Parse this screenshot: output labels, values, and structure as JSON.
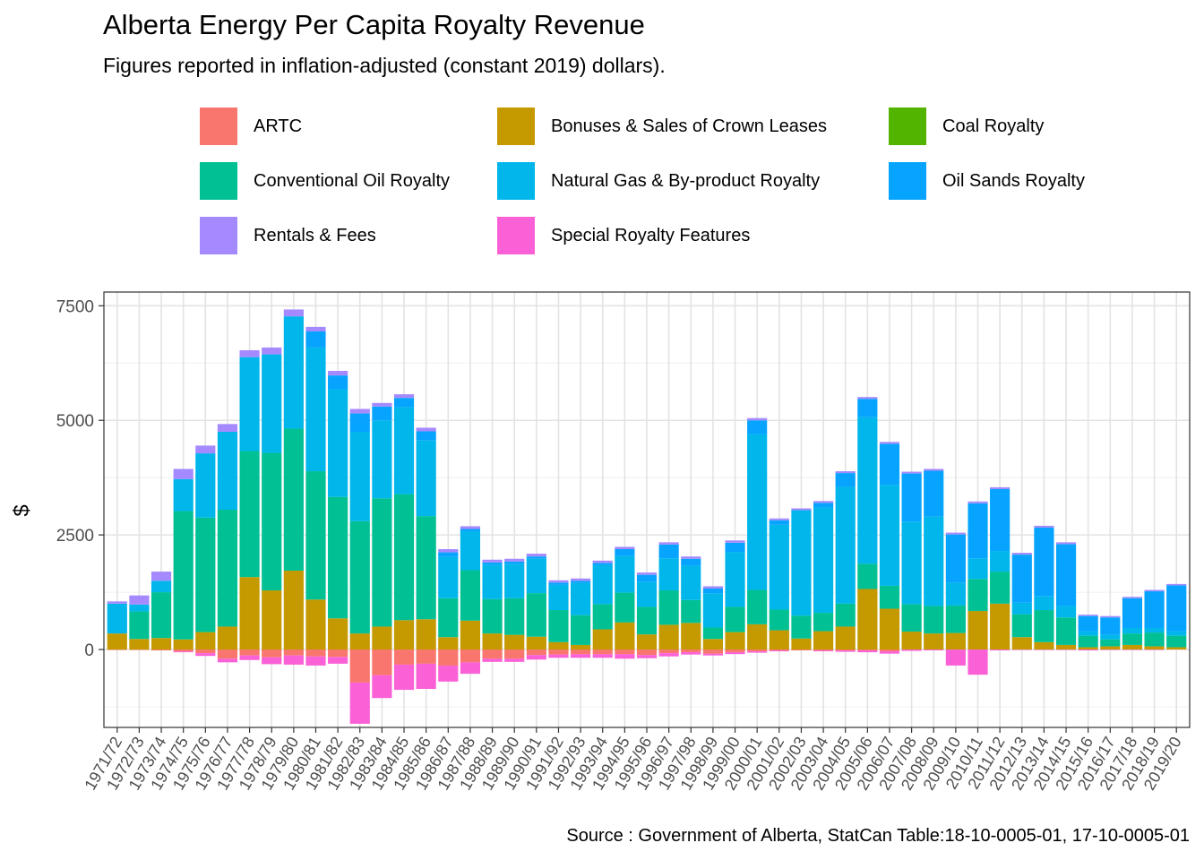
{
  "chart_data": {
    "type": "bar",
    "stacked": true,
    "title": "Alberta Energy Per Capita Royalty Revenue",
    "subtitle": "Figures reported in inflation-adjusted (constant 2019) dollars).",
    "caption": "Source : Government of Alberta, StatCan Table:18-10-0005-01, 17-10-0005-01",
    "xlabel": "",
    "ylabel": "$",
    "ylim": [
      -1700,
      7800
    ],
    "yticks": [
      0,
      2500,
      5000,
      7500
    ],
    "grid": true,
    "legend_position": "top",
    "categories": [
      "1971/72",
      "1972/73",
      "1973/74",
      "1974/75",
      "1975/76",
      "1976/77",
      "1977/78",
      "1978/79",
      "1979/80",
      "1980/81",
      "1981/82",
      "1982/83",
      "1983/84",
      "1984/85",
      "1985/86",
      "1986/87",
      "1987/88",
      "1988/89",
      "1989/90",
      "1990/91",
      "1991/92",
      "1992/93",
      "1993/94",
      "1994/95",
      "1995/96",
      "1996/97",
      "1997/98",
      "1998/99",
      "1999/00",
      "2000/01",
      "2001/02",
      "2002/03",
      "2003/04",
      "2004/05",
      "2005/06",
      "2006/07",
      "2007/08",
      "2008/09",
      "2009/10",
      "2010/11",
      "2011/12",
      "2012/13",
      "2013/14",
      "2014/15",
      "2015/16",
      "2016/17",
      "2017/18",
      "2018/19",
      "2019/20"
    ],
    "series": [
      {
        "name": "ARTC",
        "color": "#F8766D",
        "values": [
          -10,
          -10,
          -20,
          -40,
          -80,
          -200,
          -130,
          -170,
          -130,
          -150,
          -160,
          -720,
          -560,
          -330,
          -310,
          -350,
          -280,
          -200,
          -200,
          -120,
          -110,
          -100,
          -100,
          -100,
          -120,
          -80,
          -60,
          -90,
          -60,
          -40,
          -20,
          -20,
          -20,
          -20,
          -20,
          -40,
          0,
          0,
          0,
          0,
          0,
          0,
          0,
          0,
          0,
          0,
          0,
          0,
          0
        ]
      },
      {
        "name": "Bonuses & Sales of Crown Leases",
        "color": "#C49A00",
        "values": [
          350,
          230,
          250,
          220,
          380,
          500,
          1580,
          1290,
          1720,
          1090,
          680,
          350,
          500,
          640,
          660,
          270,
          630,
          350,
          320,
          280,
          160,
          100,
          440,
          590,
          330,
          540,
          580,
          230,
          380,
          550,
          420,
          240,
          400,
          500,
          1320,
          890,
          390,
          350,
          360,
          840,
          1000,
          270,
          160,
          100,
          50,
          70,
          100,
          70,
          50
        ]
      },
      {
        "name": "Coal Royalty",
        "color": "#53B400",
        "values": [
          0,
          0,
          0,
          0,
          0,
          0,
          0,
          0,
          0,
          0,
          0,
          0,
          0,
          0,
          0,
          0,
          0,
          0,
          0,
          0,
          0,
          0,
          0,
          0,
          0,
          0,
          0,
          0,
          0,
          0,
          0,
          0,
          0,
          0,
          0,
          0,
          0,
          0,
          0,
          0,
          0,
          0,
          0,
          0,
          0,
          0,
          0,
          0,
          0
        ]
      },
      {
        "name": "Conventional Oil Royalty",
        "color": "#00C094",
        "values": [
          0,
          600,
          1000,
          2800,
          2500,
          2550,
          2750,
          3000,
          3100,
          2800,
          2650,
          2450,
          2800,
          2750,
          2250,
          850,
          1100,
          750,
          800,
          950,
          700,
          650,
          550,
          650,
          600,
          750,
          500,
          250,
          550,
          750,
          450,
          500,
          400,
          500,
          550,
          500,
          600,
          600,
          600,
          700,
          700,
          500,
          700,
          600,
          250,
          150,
          250,
          300,
          250
        ]
      },
      {
        "name": "Natural Gas & By-product Royalty",
        "color": "#00B6EB",
        "values": [
          650,
          150,
          250,
          700,
          1400,
          1700,
          2050,
          2150,
          2450,
          2700,
          2350,
          1950,
          1700,
          1900,
          1650,
          900,
          850,
          750,
          750,
          750,
          550,
          700,
          850,
          800,
          550,
          700,
          750,
          750,
          1200,
          3400,
          1850,
          2300,
          2300,
          2550,
          3200,
          2200,
          1800,
          1950,
          500,
          450,
          450,
          250,
          300,
          250,
          100,
          100,
          120,
          100,
          100
        ]
      },
      {
        "name": "Oil Sands Royalty",
        "color": "#06A4FF",
        "values": [
          0,
          0,
          0,
          0,
          0,
          0,
          0,
          0,
          0,
          350,
          300,
          400,
          300,
          200,
          200,
          100,
          50,
          50,
          50,
          50,
          50,
          50,
          50,
          150,
          150,
          300,
          150,
          100,
          200,
          300,
          100,
          0,
          100,
          300,
          400,
          900,
          1050,
          1000,
          1050,
          1200,
          1350,
          1050,
          1500,
          1350,
          330,
          380,
          650,
          800,
          1000
        ]
      },
      {
        "name": "Rentals & Fees",
        "color": "#A58AFF",
        "values": [
          50,
          200,
          200,
          220,
          170,
          170,
          150,
          150,
          150,
          100,
          100,
          100,
          80,
          80,
          80,
          70,
          60,
          60,
          60,
          60,
          50,
          50,
          50,
          50,
          50,
          50,
          50,
          50,
          50,
          50,
          40,
          40,
          40,
          40,
          40,
          40,
          40,
          40,
          40,
          40,
          40,
          40,
          40,
          40,
          30,
          30,
          30,
          30,
          30
        ]
      },
      {
        "name": "Special Royalty Features",
        "color": "#FB61D7",
        "values": [
          0,
          0,
          0,
          -20,
          -60,
          -80,
          -100,
          -150,
          -200,
          -200,
          -150,
          -900,
          -500,
          -550,
          -550,
          -350,
          -250,
          -70,
          -70,
          -100,
          -70,
          -80,
          -80,
          -100,
          -70,
          -70,
          -50,
          -40,
          -40,
          -30,
          -20,
          0,
          -20,
          -30,
          -40,
          -50,
          -30,
          -20,
          -350,
          -550,
          -20,
          -10,
          -10,
          -10,
          -20,
          -10,
          -10,
          -10,
          0
        ]
      }
    ]
  }
}
